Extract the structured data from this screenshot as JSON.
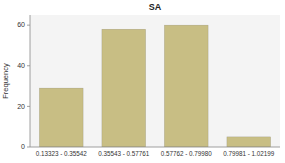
{
  "chart_data": {
    "type": "bar",
    "title": "SA",
    "categories": [
      "0.13323 - 0.35542",
      "0.35543 - 0.57761",
      "0.57762 - 0.79980",
      "0.79981 - 1.02199"
    ],
    "values": [
      29,
      58,
      60,
      5
    ],
    "color": "#C8BE84",
    "ylabel": "Frequency",
    "ylim": [
      0,
      65
    ],
    "yticks": [
      0,
      20,
      40,
      60
    ]
  }
}
